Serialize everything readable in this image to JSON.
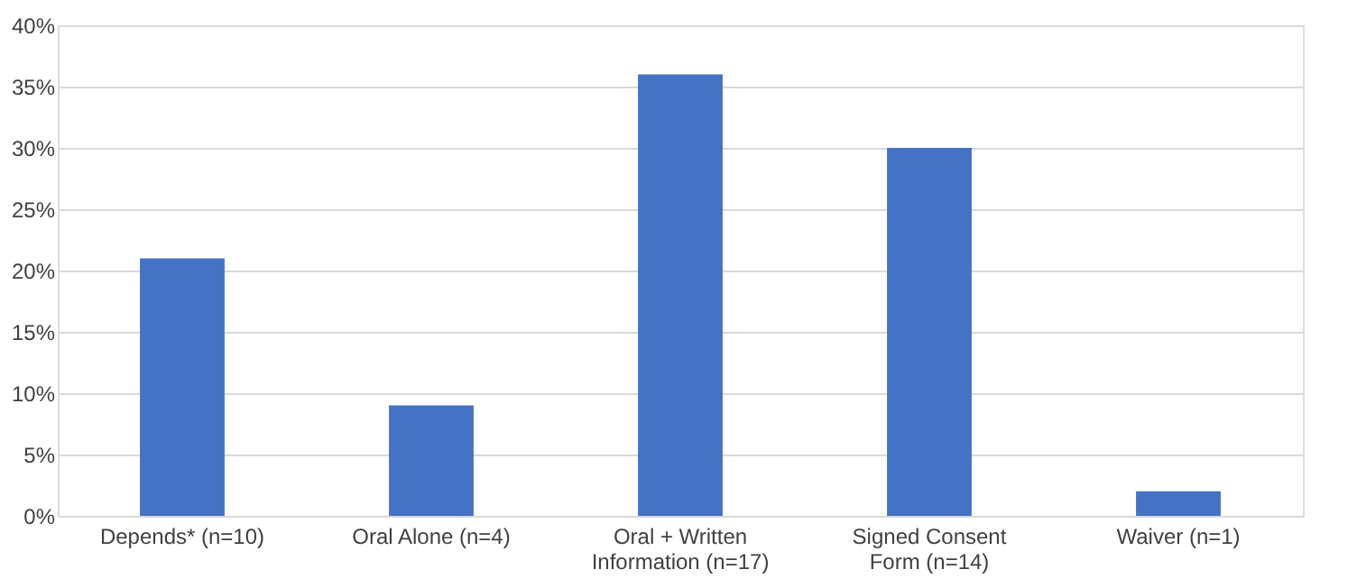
{
  "chart_data": {
    "type": "bar",
    "categories": [
      "Depends* (n=10)",
      "Oral Alone (n=4)",
      "Oral + Written Information (n=17)",
      "Signed Consent Form (n=14)",
      "Waiver (n=1)"
    ],
    "values": [
      21,
      9,
      36,
      30,
      2
    ],
    "color": "#4472c4",
    "ylim": [
      0,
      40
    ],
    "yticks": [
      {
        "value": 0,
        "label": "0%"
      },
      {
        "value": 5,
        "label": "5%"
      },
      {
        "value": 10,
        "label": "10%"
      },
      {
        "value": 15,
        "label": "15%"
      },
      {
        "value": 20,
        "label": "20%"
      },
      {
        "value": 25,
        "label": "25%"
      },
      {
        "value": 30,
        "label": "30%"
      },
      {
        "value": 35,
        "label": "35%"
      },
      {
        "value": 40,
        "label": "40%"
      }
    ],
    "grid": "y"
  }
}
